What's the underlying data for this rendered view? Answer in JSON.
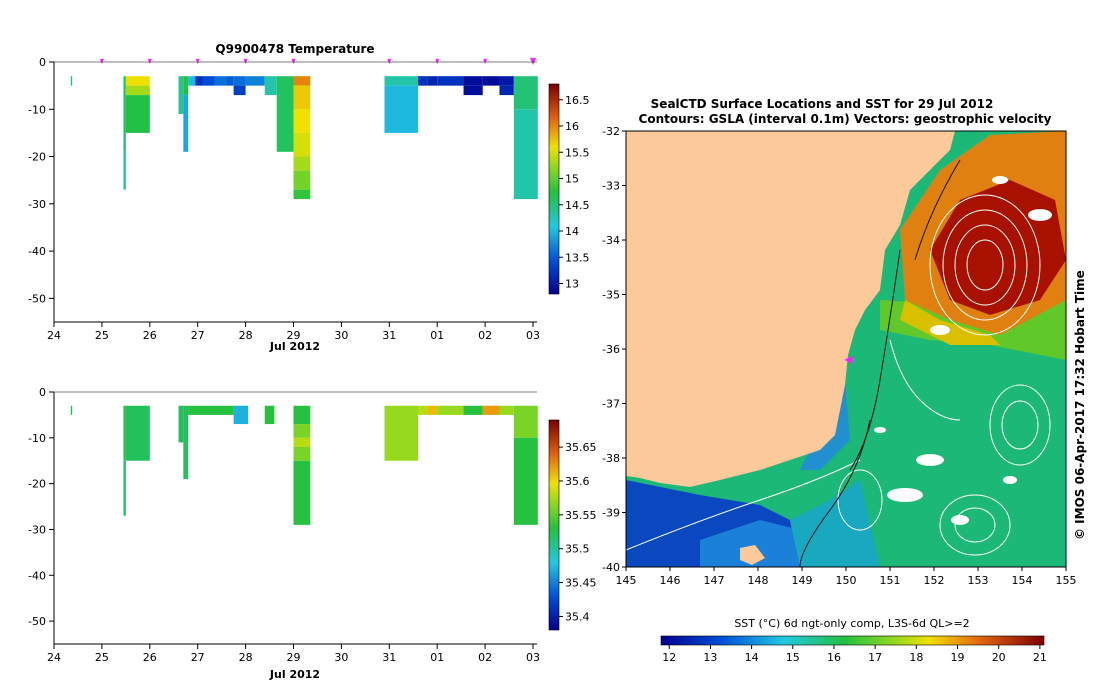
{
  "chart_data": [
    {
      "type": "heatmap",
      "title": "Q9900478  Temperature",
      "xlabel": "Jul 2012",
      "ylabel": "",
      "x_ticks": [
        "24",
        "25",
        "26",
        "27",
        "28",
        "29",
        "30",
        "31",
        "01",
        "02",
        "03"
      ],
      "y_ticks": [
        "0",
        "-10",
        "-20",
        "-30",
        "-40",
        "-50"
      ],
      "xlim": [
        24,
        34
      ],
      "ylim": [
        -55,
        0
      ],
      "colorbar": {
        "ticks": [
          "13",
          "13.5",
          "14",
          "14.5",
          "15",
          "15.5",
          "16",
          "16.5"
        ],
        "range": [
          12.8,
          16.8
        ]
      },
      "profile_marks": [
        25,
        26,
        27,
        28,
        29,
        31,
        32,
        33,
        34
      ],
      "cells": [
        {
          "x0": 24.35,
          "x1": 24.38,
          "d0": -3,
          "d1": -5,
          "v": 14.5
        },
        {
          "x0": 25.45,
          "x1": 25.5,
          "d0": -3,
          "d1": -15,
          "v": 14.6
        },
        {
          "x0": 25.45,
          "x1": 25.5,
          "d0": -15,
          "d1": -19,
          "v": 14.5
        },
        {
          "x0": 25.45,
          "x1": 25.5,
          "d0": -19,
          "d1": -27,
          "v": 14.4
        },
        {
          "x0": 25.5,
          "x1": 26.0,
          "d0": -3,
          "d1": -5,
          "v": 15.6
        },
        {
          "x0": 25.5,
          "x1": 26.0,
          "d0": -5,
          "d1": -7,
          "v": 15.3
        },
        {
          "x0": 25.5,
          "x1": 26.0,
          "d0": -7,
          "d1": -15,
          "v": 14.7
        },
        {
          "x0": 26.6,
          "x1": 26.7,
          "d0": -3,
          "d1": -11,
          "v": 14.4
        },
        {
          "x0": 26.7,
          "x1": 26.8,
          "d0": -3,
          "d1": -7,
          "v": 14.7
        },
        {
          "x0": 26.7,
          "x1": 26.8,
          "d0": -7,
          "d1": -19,
          "v": 13.9
        },
        {
          "x0": 26.8,
          "x1": 26.95,
          "d0": -3,
          "d1": -5,
          "v": 14.0
        },
        {
          "x0": 26.95,
          "x1": 27.1,
          "d0": -3,
          "d1": -5,
          "v": 13.2
        },
        {
          "x0": 27.1,
          "x1": 27.35,
          "d0": -3,
          "d1": -5,
          "v": 13.4
        },
        {
          "x0": 27.35,
          "x1": 27.6,
          "d0": -3,
          "d1": -5,
          "v": 13.6
        },
        {
          "x0": 27.6,
          "x1": 27.75,
          "d0": -3,
          "d1": -5,
          "v": 13.5
        },
        {
          "x0": 27.75,
          "x1": 28.0,
          "d0": -3,
          "d1": -5,
          "v": 13.6
        },
        {
          "x0": 27.75,
          "x1": 28.0,
          "d0": -5,
          "d1": -7,
          "v": 13.3
        },
        {
          "x0": 28.0,
          "x1": 28.4,
          "d0": -3,
          "d1": -5,
          "v": 13.7
        },
        {
          "x0": 28.4,
          "x1": 28.65,
          "d0": -3,
          "d1": -7,
          "v": 14.3
        },
        {
          "x0": 28.65,
          "x1": 29.0,
          "d0": -3,
          "d1": -19,
          "v": 14.6
        },
        {
          "x0": 29.0,
          "x1": 29.35,
          "d0": -3,
          "d1": -5,
          "v": 16.0
        },
        {
          "x0": 29.0,
          "x1": 29.35,
          "d0": -5,
          "d1": -10,
          "v": 15.7
        },
        {
          "x0": 29.0,
          "x1": 29.35,
          "d0": -10,
          "d1": -15,
          "v": 15.6
        },
        {
          "x0": 29.0,
          "x1": 29.35,
          "d0": -15,
          "d1": -20,
          "v": 15.5
        },
        {
          "x0": 29.0,
          "x1": 29.35,
          "d0": -20,
          "d1": -23,
          "v": 15.3
        },
        {
          "x0": 29.0,
          "x1": 29.35,
          "d0": -23,
          "d1": -27,
          "v": 15.1
        },
        {
          "x0": 29.0,
          "x1": 29.35,
          "d0": -27,
          "d1": -29,
          "v": 14.8
        },
        {
          "x0": 30.9,
          "x1": 31.6,
          "d0": -3,
          "d1": -5,
          "v": 14.3
        },
        {
          "x0": 30.9,
          "x1": 31.6,
          "d0": -5,
          "d1": -15,
          "v": 14.0
        },
        {
          "x0": 31.6,
          "x1": 31.8,
          "d0": -3,
          "d1": -5,
          "v": 13.2
        },
        {
          "x0": 31.8,
          "x1": 32.0,
          "d0": -3,
          "d1": -5,
          "v": 13.1
        },
        {
          "x0": 32.0,
          "x1": 32.55,
          "d0": -3,
          "d1": -5,
          "v": 13.2
        },
        {
          "x0": 32.55,
          "x1": 32.95,
          "d0": -3,
          "d1": -5,
          "v": 12.9
        },
        {
          "x0": 32.55,
          "x1": 32.95,
          "d0": -5,
          "d1": -7,
          "v": 12.9
        },
        {
          "x0": 32.95,
          "x1": 33.3,
          "d0": -3,
          "d1": -5,
          "v": 12.9
        },
        {
          "x0": 33.3,
          "x1": 33.6,
          "d0": -3,
          "d1": -5,
          "v": 13.0
        },
        {
          "x0": 33.3,
          "x1": 33.6,
          "d0": -5,
          "d1": -7,
          "v": 13.1
        },
        {
          "x0": 33.6,
          "x1": 34.1,
          "d0": -3,
          "d1": -10,
          "v": 14.5
        },
        {
          "x0": 33.6,
          "x1": 34.1,
          "d0": -10,
          "d1": -29,
          "v": 14.3
        }
      ]
    },
    {
      "type": "heatmap",
      "title": "",
      "xlabel": "Jul 2012",
      "ylabel": "",
      "x_ticks": [
        "24",
        "25",
        "26",
        "27",
        "28",
        "29",
        "30",
        "31",
        "01",
        "02",
        "03"
      ],
      "y_ticks": [
        "0",
        "-10",
        "-20",
        "-30",
        "-40",
        "-50"
      ],
      "xlim": [
        24,
        34
      ],
      "ylim": [
        -55,
        0
      ],
      "colorbar": {
        "ticks": [
          "35.4",
          "35.45",
          "35.5",
          "35.55",
          "35.6",
          "35.65"
        ],
        "range": [
          35.38,
          35.69
        ]
      },
      "cells": [
        {
          "x0": 24.35,
          "x1": 24.38,
          "d0": -3,
          "d1": -5,
          "v": 35.52
        },
        {
          "x0": 25.45,
          "x1": 25.5,
          "d0": -3,
          "d1": -15,
          "v": 35.53
        },
        {
          "x0": 25.45,
          "x1": 25.5,
          "d0": -15,
          "d1": -27,
          "v": 35.52
        },
        {
          "x0": 25.5,
          "x1": 26.0,
          "d0": -3,
          "d1": -15,
          "v": 35.52
        },
        {
          "x0": 26.6,
          "x1": 26.7,
          "d0": -3,
          "d1": -11,
          "v": 35.52
        },
        {
          "x0": 26.7,
          "x1": 26.8,
          "d0": -3,
          "d1": -19,
          "v": 35.52
        },
        {
          "x0": 26.8,
          "x1": 27.75,
          "d0": -3,
          "d1": -5,
          "v": 35.53
        },
        {
          "x0": 27.75,
          "x1": 28.05,
          "d0": -3,
          "d1": -7,
          "v": 35.47
        },
        {
          "x0": 28.4,
          "x1": 28.6,
          "d0": -3,
          "d1": -7,
          "v": 35.53
        },
        {
          "x0": 29.0,
          "x1": 29.35,
          "d0": -3,
          "d1": -7,
          "v": 35.53
        },
        {
          "x0": 29.0,
          "x1": 29.35,
          "d0": -7,
          "d1": -10,
          "v": 35.56
        },
        {
          "x0": 29.0,
          "x1": 29.35,
          "d0": -10,
          "d1": -12,
          "v": 35.58
        },
        {
          "x0": 29.0,
          "x1": 29.35,
          "d0": -12,
          "d1": -15,
          "v": 35.56
        },
        {
          "x0": 29.0,
          "x1": 29.35,
          "d0": -15,
          "d1": -29,
          "v": 35.53
        },
        {
          "x0": 30.9,
          "x1": 31.6,
          "d0": -3,
          "d1": -15,
          "v": 35.57
        },
        {
          "x0": 31.6,
          "x1": 31.8,
          "d0": -3,
          "d1": -5,
          "v": 35.58
        },
        {
          "x0": 31.8,
          "x1": 32.0,
          "d0": -3,
          "d1": -5,
          "v": 35.61
        },
        {
          "x0": 32.0,
          "x1": 32.55,
          "d0": -3,
          "d1": -5,
          "v": 35.57
        },
        {
          "x0": 32.55,
          "x1": 32.95,
          "d0": -3,
          "d1": -5,
          "v": 35.53
        },
        {
          "x0": 32.95,
          "x1": 33.3,
          "d0": -3,
          "d1": -5,
          "v": 35.62
        },
        {
          "x0": 33.3,
          "x1": 33.6,
          "d0": -3,
          "d1": -5,
          "v": 35.57
        },
        {
          "x0": 33.6,
          "x1": 34.1,
          "d0": -3,
          "d1": -10,
          "v": 35.56
        },
        {
          "x0": 33.6,
          "x1": 34.1,
          "d0": -10,
          "d1": -29,
          "v": 35.53
        }
      ]
    },
    {
      "type": "heatmap",
      "title": "SealCTD Surface Locations and SST for 29 Jul 2012",
      "subtitle": "Contours: GSLA (interval 0.1m) Vectors: geostrophic velocity",
      "xlabel": "",
      "ylabel": "",
      "x_ticks": [
        "145",
        "146",
        "147",
        "148",
        "149",
        "150",
        "151",
        "152",
        "153",
        "154",
        "155"
      ],
      "y_ticks": [
        "-32",
        "-33",
        "-34",
        "-35",
        "-36",
        "-37",
        "-38",
        "-39",
        "-40"
      ],
      "xlim": [
        145,
        155
      ],
      "ylim": [
        -40,
        -32
      ],
      "colorbar": {
        "label": "SST (°C) 6d ngt-only comp, L3S-6d QL>=2",
        "ticks": [
          "12",
          "13",
          "14",
          "15",
          "16",
          "17",
          "18",
          "19",
          "20",
          "21"
        ],
        "range": [
          11.8,
          21.1
        ]
      },
      "seal_location": {
        "lon": 150.1,
        "lat": -36.2
      },
      "side_label": "© IMOS 06-Apr-2017 17:32 Hobart Time"
    }
  ]
}
